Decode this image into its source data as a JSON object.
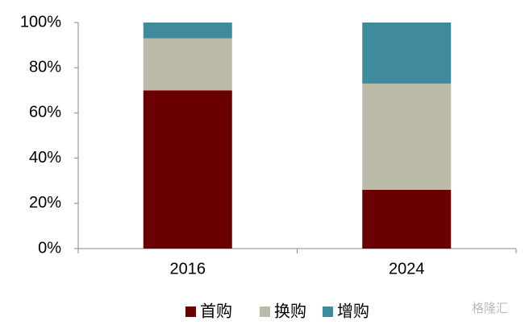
{
  "chart_data": {
    "type": "stacked_bar",
    "categories": [
      "2016",
      "2024"
    ],
    "series": [
      {
        "name": "首购",
        "color": "#6b0000",
        "values": [
          70,
          26
        ]
      },
      {
        "name": "换购",
        "color": "#bcbaa8",
        "values": [
          23,
          47
        ]
      },
      {
        "name": "增购",
        "color": "#3f8a9c",
        "values": [
          7,
          27
        ]
      }
    ],
    "ylim": [
      0,
      100
    ],
    "yticks": [
      {
        "value": 0,
        "label": "0%"
      },
      {
        "value": 20,
        "label": "20%"
      },
      {
        "value": 40,
        "label": "40%"
      },
      {
        "value": 60,
        "label": "60%"
      },
      {
        "value": 80,
        "label": "80%"
      },
      {
        "value": 100,
        "label": "100%"
      }
    ],
    "legend": "bottom",
    "watermark": "格隆汇"
  }
}
